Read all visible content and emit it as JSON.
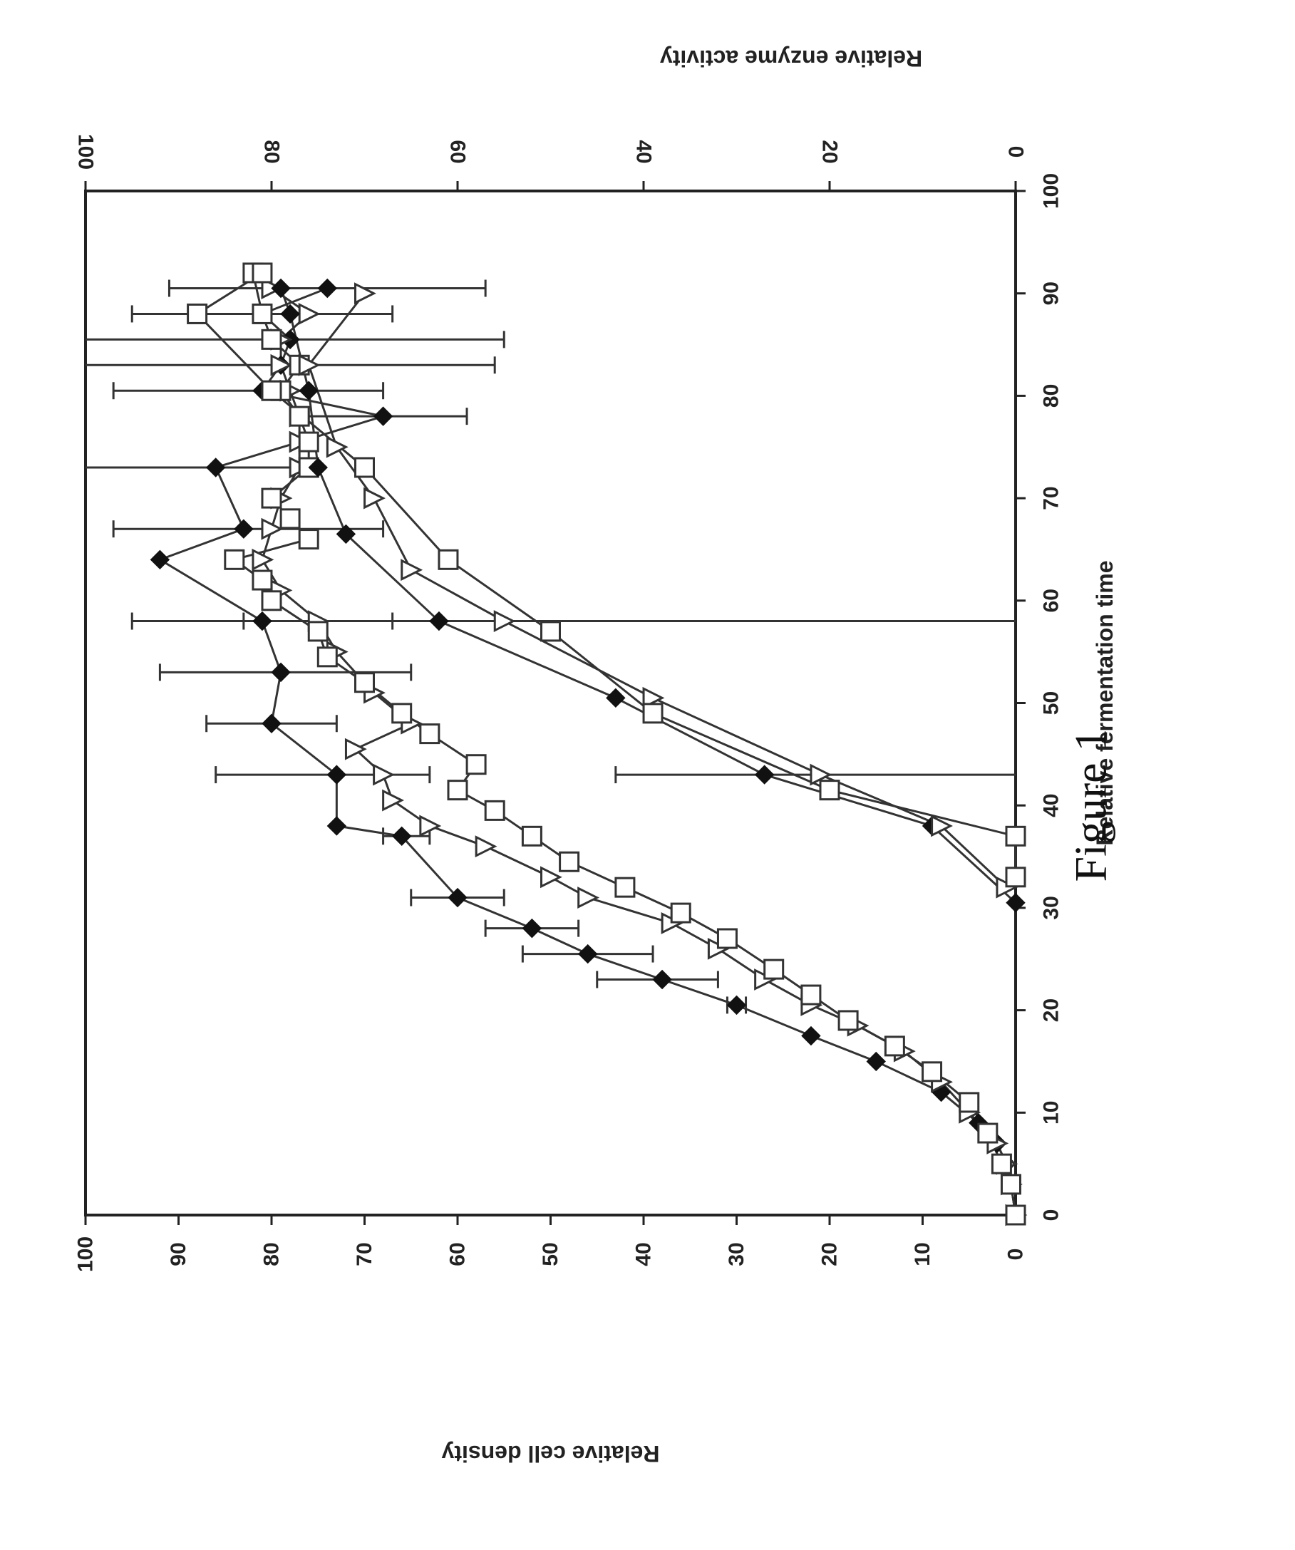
{
  "caption": "Figure 1",
  "chart_data": {
    "type": "line",
    "title": "",
    "xlabel": "Relative fermentation time",
    "ylabel_left": "Relative cell density",
    "ylabel_right": "Relative enzyme activity",
    "xlim": [
      0,
      100
    ],
    "ylim_left": [
      0,
      100
    ],
    "ylim_right": [
      0,
      100
    ],
    "x_ticks": [
      "0",
      "10",
      "20",
      "30",
      "40",
      "50",
      "60",
      "70",
      "80",
      "90",
      "100"
    ],
    "y_left_ticks": [
      "0",
      "10",
      "20",
      "30",
      "40",
      "50",
      "60",
      "70",
      "80",
      "90",
      "100"
    ],
    "y_right_ticks": [
      "0",
      "20",
      "40",
      "60",
      "80",
      "100"
    ],
    "orientation": "rotated 90 degrees clockwise",
    "grid": false,
    "legend": "none",
    "series": [
      {
        "marker": "diamond-filled",
        "axis": "left",
        "x": [
          0,
          3,
          5,
          7,
          9,
          12,
          15,
          17.5,
          20.5,
          23,
          25.5,
          28,
          31,
          37,
          38,
          43,
          48,
          53,
          58,
          64,
          67,
          73,
          78,
          80.5,
          83,
          85.5,
          88,
          90.5
        ],
        "y": [
          0,
          0.5,
          1,
          2,
          4,
          8,
          15,
          22,
          30,
          38,
          46,
          52,
          60,
          66,
          73,
          73,
          80,
          79,
          81,
          92,
          83,
          86,
          68,
          81,
          79,
          78,
          81,
          74
        ]
      },
      {
        "marker": "triangle-open",
        "axis": "left",
        "x": [
          0,
          3,
          5,
          7,
          10,
          13,
          16,
          18.5,
          20.5,
          23,
          26,
          28.5,
          31,
          33,
          36,
          38,
          40.5,
          43,
          45.5,
          48,
          51,
          55,
          58,
          61,
          64,
          67,
          70,
          73,
          75.5,
          78,
          80.5,
          83,
          85.5,
          88,
          90.5
        ],
        "y": [
          0,
          0.5,
          1,
          2,
          5,
          8,
          12,
          17,
          22,
          27,
          32,
          37,
          46,
          50,
          57,
          63,
          67,
          68,
          71,
          65,
          69,
          73,
          75,
          79,
          81,
          80,
          79,
          77,
          77,
          77,
          78,
          79,
          79,
          76,
          80
        ]
      },
      {
        "marker": "square-open",
        "axis": "left",
        "x": [
          0,
          3,
          5,
          8,
          11,
          14,
          16.5,
          19,
          21.5,
          24,
          27,
          29.5,
          32,
          34.5,
          37,
          39.5,
          41.5,
          44,
          47,
          49,
          52,
          54.5,
          57,
          60,
          62,
          64,
          66,
          68,
          70,
          73,
          75.5,
          78,
          80.5,
          83,
          85.5,
          88,
          92
        ],
        "y": [
          0,
          0.5,
          1.5,
          3,
          5,
          9,
          13,
          18,
          22,
          26,
          31,
          36,
          42,
          48,
          52,
          56,
          60,
          58,
          63,
          66,
          70,
          74,
          75,
          80,
          81,
          84,
          76,
          78,
          80,
          76,
          76,
          77,
          79,
          77,
          80,
          81,
          82
        ]
      },
      {
        "marker": "diamond-filled",
        "axis": "right",
        "x": [
          30.5,
          38,
          43,
          50.5,
          58,
          66.5,
          73,
          80.5,
          88,
          90.5
        ],
        "y": [
          0,
          9,
          27,
          43,
          62,
          72,
          75,
          76,
          78,
          79
        ]
      },
      {
        "marker": "triangle-open",
        "axis": "right",
        "x": [
          32,
          38,
          43,
          50.5,
          58,
          63,
          70,
          75,
          83,
          90
        ],
        "y": [
          1,
          8,
          21,
          39,
          55,
          65,
          69,
          73,
          76,
          70
        ]
      },
      {
        "marker": "square-open",
        "axis": "right",
        "x": [
          33,
          37,
          41.5,
          49,
          57,
          64,
          73,
          80.5,
          88,
          92
        ],
        "y": [
          0,
          0,
          20,
          39,
          50,
          61,
          70,
          80,
          88,
          81
        ]
      }
    ],
    "error_bars": [
      {
        "axis": "left",
        "x": 20.5,
        "lo": 29,
        "hi": 31
      },
      {
        "axis": "left",
        "x": 23,
        "lo": 32,
        "hi": 45
      },
      {
        "axis": "left",
        "x": 25.5,
        "lo": 39,
        "hi": 53
      },
      {
        "axis": "left",
        "x": 28,
        "lo": 47,
        "hi": 57
      },
      {
        "axis": "left",
        "x": 31,
        "lo": 55,
        "hi": 65
      },
      {
        "axis": "left",
        "x": 37,
        "lo": 63,
        "hi": 68
      },
      {
        "axis": "left",
        "x": 43,
        "lo": 63,
        "hi": 86
      },
      {
        "axis": "left",
        "x": 48,
        "lo": 73,
        "hi": 87
      },
      {
        "axis": "left",
        "x": 53,
        "lo": 65,
        "hi": 92
      },
      {
        "axis": "left",
        "x": 58,
        "lo": 67,
        "hi": 95
      },
      {
        "axis": "left",
        "x": 67,
        "lo": 68,
        "hi": 97
      },
      {
        "axis": "left",
        "x": 73,
        "lo": 75,
        "hi": 100
      },
      {
        "axis": "left",
        "x": 78,
        "lo": 59,
        "hi": 76
      },
      {
        "axis": "left",
        "x": 80.5,
        "lo": 68,
        "hi": 97
      },
      {
        "axis": "left",
        "x": 83,
        "lo": 56,
        "hi": 100
      },
      {
        "axis": "left",
        "x": 85.5,
        "lo": 55,
        "hi": 100
      },
      {
        "axis": "left",
        "x": 88,
        "lo": 67,
        "hi": 95
      },
      {
        "axis": "left",
        "x": 90.5,
        "lo": 57,
        "hi": 91
      },
      {
        "axis": "right",
        "x": 43,
        "lo": 0,
        "hi": 43
      },
      {
        "axis": "right",
        "x": 58,
        "lo": 0,
        "hi": 83
      }
    ]
  }
}
